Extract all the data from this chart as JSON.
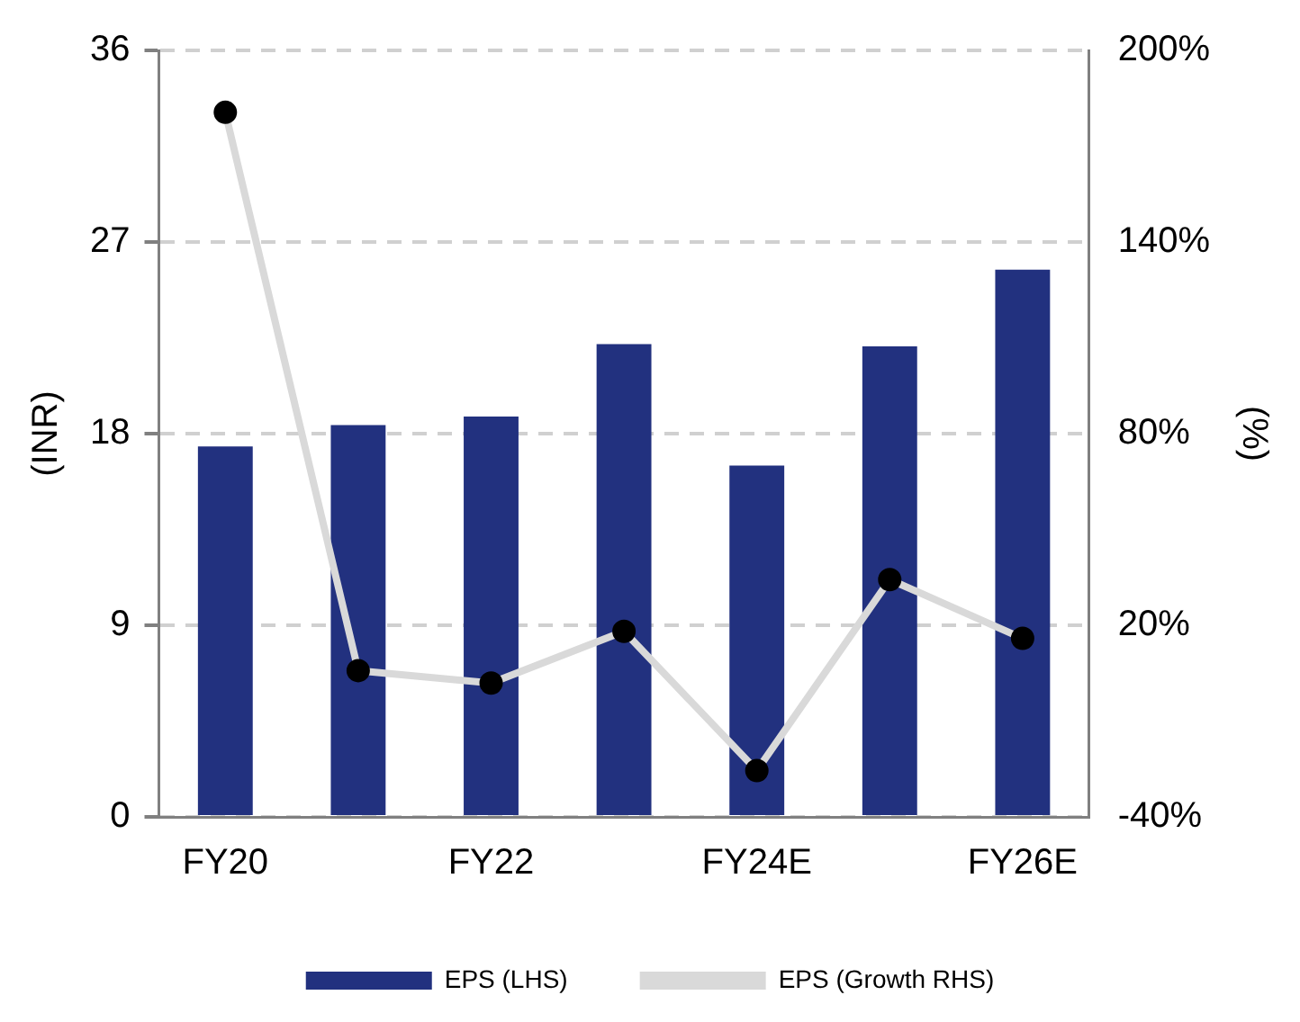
{
  "chart_data": {
    "type": "bar",
    "categories": [
      "FY20",
      null,
      "FY22",
      null,
      "FY24E",
      null,
      "FY26E"
    ],
    "ylabel": "(INR)",
    "y2label": "(%)",
    "series": [
      {
        "name": "EPS (LHS)",
        "color": "#22317f",
        "values": [
          17.4,
          18.4,
          18.8,
          22.2,
          16.5,
          22.1,
          25.7
        ]
      },
      {
        "name": "EPS (Growth RHS)",
        "type": "line",
        "axis": "y2",
        "color": "#d9d9d9",
        "marker": "circle",
        "values": [
          180.6,
          5.8,
          1.9,
          18.1,
          -25.5,
          34.3,
          15.9
        ]
      }
    ],
    "ylim": [
      0,
      36
    ],
    "yticks": [
      0,
      9,
      18,
      27,
      36
    ],
    "y2lim": [
      -40,
      200
    ],
    "y2ticks": [
      {
        "value": -40,
        "label": "-40%"
      },
      {
        "value": 20,
        "label": "20%"
      },
      {
        "value": 80,
        "label": "80%"
      },
      {
        "value": 140,
        "label": "140%"
      },
      {
        "value": 200,
        "label": "200%"
      }
    ],
    "grid": "y",
    "legend": "bottom"
  }
}
